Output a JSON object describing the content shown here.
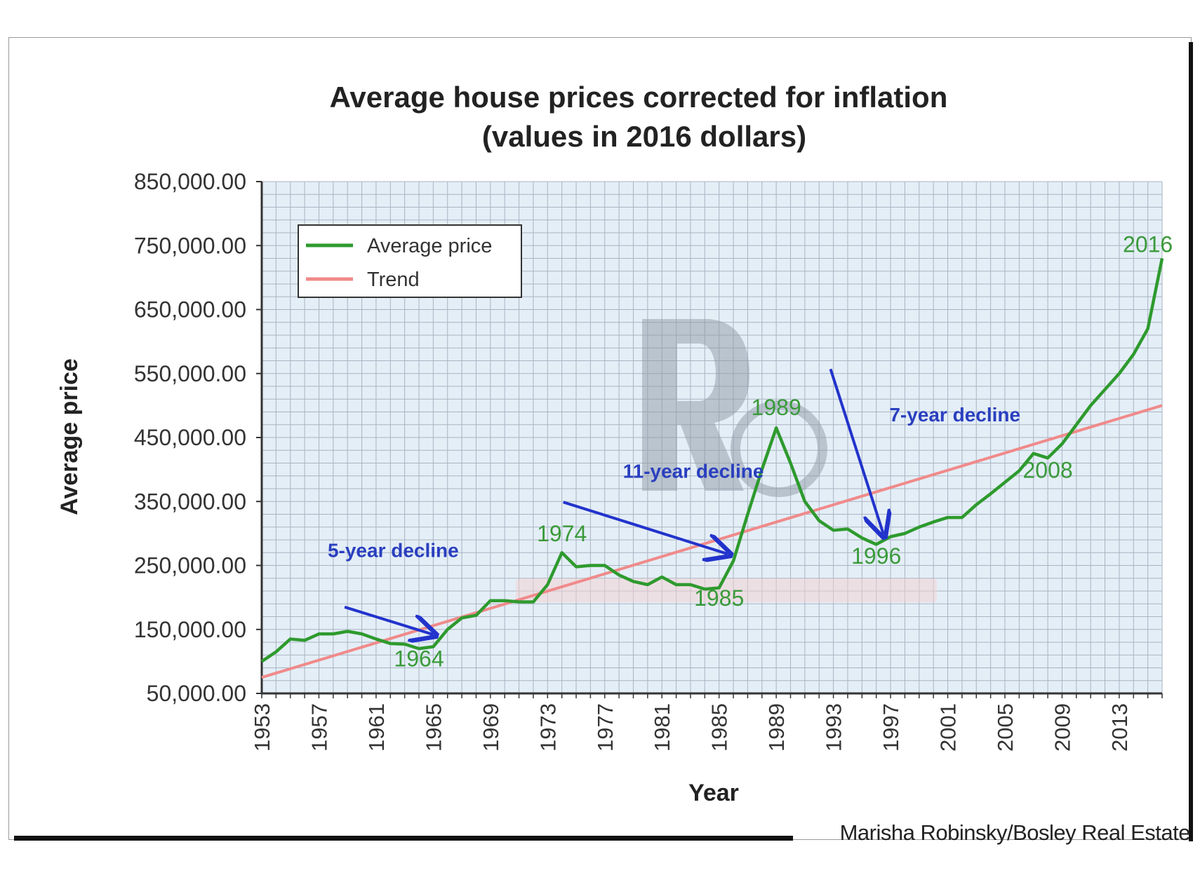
{
  "credit": "Marisha Robinsky/Bosley Real Estate",
  "colors": {
    "average": "#2e9a2e",
    "trend": "#f08a8a",
    "arrow": "#2233cc",
    "annotation_year": "#3a9a3a",
    "annotation_decline": "#2a3fbf",
    "plot_bg": "#e4eef7",
    "grid": "#a9b4c2"
  },
  "chart_data": {
    "type": "line",
    "title": "Average house prices corrected for inflation",
    "subtitle": "(values in 2016 dollars)",
    "xlabel": "Year",
    "ylabel": "Average price",
    "xlim": [
      1953,
      2016
    ],
    "ylim": [
      50000,
      850000
    ],
    "y_ticks": [
      "850,000.00",
      "750,000.00",
      "650,000.00",
      "550,000.00",
      "450,000.00",
      "350,000.00",
      "250,000.00",
      "150,000.00",
      "50,000.00"
    ],
    "y_tick_values": [
      850000,
      750000,
      650000,
      550000,
      450000,
      350000,
      250000,
      150000,
      50000
    ],
    "x_ticks": [
      "1953",
      "1957",
      "1961",
      "1965",
      "1969",
      "1973",
      "1977",
      "1981",
      "1985",
      "1989",
      "1993",
      "1997",
      "2001",
      "2005",
      "2009",
      "2013"
    ],
    "x_tick_values": [
      1953,
      1957,
      1961,
      1965,
      1969,
      1973,
      1977,
      1981,
      1985,
      1989,
      1993,
      1997,
      2001,
      2005,
      2009,
      2013
    ],
    "legend": {
      "position": "top-left",
      "entries": [
        "Average price",
        "Trend"
      ]
    },
    "series": [
      {
        "name": "Average price",
        "x": [
          1953,
          1954,
          1955,
          1956,
          1957,
          1958,
          1959,
          1960,
          1961,
          1962,
          1963,
          1964,
          1965,
          1966,
          1967,
          1968,
          1969,
          1970,
          1971,
          1972,
          1973,
          1974,
          1975,
          1976,
          1977,
          1978,
          1979,
          1980,
          1981,
          1982,
          1983,
          1984,
          1985,
          1986,
          1987,
          1988,
          1989,
          1990,
          1991,
          1992,
          1993,
          1994,
          1995,
          1996,
          1997,
          1998,
          1999,
          2000,
          2001,
          2002,
          2003,
          2004,
          2005,
          2006,
          2007,
          2008,
          2009,
          2010,
          2011,
          2012,
          2013,
          2014,
          2015,
          2016
        ],
        "values": [
          100000,
          115000,
          135000,
          133000,
          143000,
          143000,
          147000,
          143000,
          135000,
          128000,
          127000,
          120000,
          123000,
          150000,
          168000,
          172000,
          195000,
          195000,
          193000,
          193000,
          220000,
          270000,
          248000,
          250000,
          250000,
          235000,
          225000,
          220000,
          232000,
          220000,
          220000,
          213000,
          215000,
          257000,
          330000,
          400000,
          465000,
          410000,
          350000,
          320000,
          305000,
          307000,
          293000,
          283000,
          295000,
          300000,
          310000,
          318000,
          325000,
          325000,
          345000,
          362000,
          380000,
          398000,
          425000,
          418000,
          440000,
          470000,
          500000,
          525000,
          550000,
          580000,
          620000,
          730000
        ]
      },
      {
        "name": "Trend",
        "x": [
          1953,
          2016
        ],
        "values": [
          75000,
          500000
        ]
      }
    ],
    "annotations": {
      "years": [
        {
          "label": "1964",
          "x": 1964,
          "y": 92000
        },
        {
          "label": "1974",
          "x": 1974,
          "y": 288000
        },
        {
          "label": "1985",
          "x": 1985,
          "y": 187000
        },
        {
          "label": "1989",
          "x": 1989,
          "y": 485000
        },
        {
          "label": "1996",
          "x": 1996,
          "y": 253000
        },
        {
          "label": "2008",
          "x": 2008,
          "y": 387000
        },
        {
          "label": "2016",
          "x": 2015,
          "y": 740000
        }
      ],
      "declines": [
        {
          "label": "5-year decline",
          "x": 1962.2,
          "y": 263000,
          "arrow_from": [
            1958.8,
            185000
          ],
          "arrow_to": [
            1965.0,
            142000
          ]
        },
        {
          "label": "11-year decline",
          "x": 1983.2,
          "y": 387000,
          "arrow_from": [
            1974.1,
            349000
          ],
          "arrow_to": [
            1985.6,
            268000
          ]
        },
        {
          "label": "7-year decline",
          "x": 2001.5,
          "y": 475000,
          "arrow_from": [
            1992.8,
            557000
          ],
          "arrow_to": [
            1996.5,
            299000
          ]
        }
      ]
    }
  }
}
